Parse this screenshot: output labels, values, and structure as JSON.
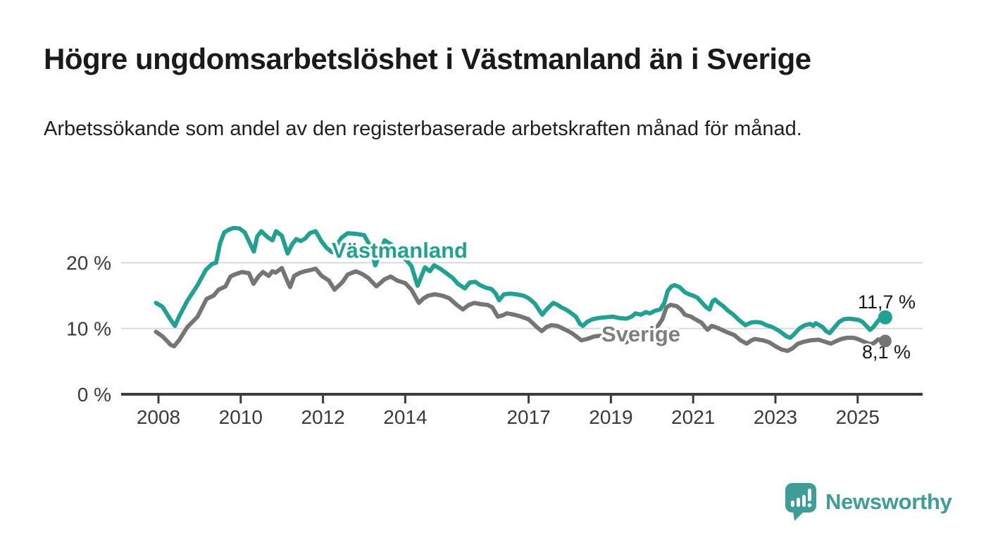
{
  "page": {
    "title": "Högre ungdomsarbetslöshet i Västmanland än i Sverige",
    "subtitle": "Arbetssökande som andel av den registerbaserade arbetskraften månad för månad."
  },
  "chart": {
    "y_axis": {
      "tick_labels": [
        "20 %",
        "10 %",
        "0 %"
      ],
      "tick_values": [
        20,
        10,
        0
      ]
    },
    "x_axis": {
      "tick_years": [
        2008,
        2010,
        2012,
        2014,
        2017,
        2019,
        2021,
        2023,
        2025
      ]
    },
    "series_labels": {
      "vastmanland": "Västmanland",
      "sverige": "Sverige"
    },
    "end_labels": {
      "vastmanland": "11,7 %",
      "sverige": "8,1 %"
    },
    "colors": {
      "vastmanland": "#20A191",
      "sverige": "#757575",
      "grid": "#d9d9d9",
      "axis": "#3c3c3c",
      "tick_text": "#3a3a3a",
      "end_label_text": "#1a1a1a"
    }
  },
  "chart_data": {
    "type": "line",
    "title": "Högre ungdomsarbetslöshet i Västmanland än i Sverige",
    "subtitle": "Arbetssökande som andel av den registerbaserade arbetskraften månad för månad.",
    "unit": "%",
    "x_range": [
      2007.9,
      2026.5
    ],
    "ylim": [
      0,
      27
    ],
    "y_ticks": [
      0,
      10,
      20
    ],
    "x_ticks": [
      2008,
      2010,
      2012,
      2014,
      2017,
      2019,
      2021,
      2023,
      2025
    ],
    "grid": "horizontal",
    "legend_position": "inline-labels",
    "series": [
      {
        "name": "Västmanland",
        "color": "#20A191",
        "end_label": "11,7 %",
        "end_value": 11.7,
        "points": [
          [
            2007.94,
            13.9
          ],
          [
            2008.1,
            13.3
          ],
          [
            2008.3,
            11.3
          ],
          [
            2008.4,
            10.4
          ],
          [
            2008.5,
            11.8
          ],
          [
            2008.7,
            14.2
          ],
          [
            2008.95,
            16.6
          ],
          [
            2009.15,
            18.9
          ],
          [
            2009.3,
            19.8
          ],
          [
            2009.4,
            20.0
          ],
          [
            2009.5,
            23.0
          ],
          [
            2009.6,
            24.6
          ],
          [
            2009.7,
            25.0
          ],
          [
            2009.83,
            25.3
          ],
          [
            2009.97,
            25.2
          ],
          [
            2010.1,
            24.6
          ],
          [
            2010.25,
            22.6
          ],
          [
            2010.32,
            21.7
          ],
          [
            2010.4,
            24.0
          ],
          [
            2010.5,
            24.8
          ],
          [
            2010.65,
            23.9
          ],
          [
            2010.77,
            23.4
          ],
          [
            2010.86,
            24.8
          ],
          [
            2011.0,
            24.1
          ],
          [
            2011.14,
            21.4
          ],
          [
            2011.25,
            22.8
          ],
          [
            2011.35,
            23.6
          ],
          [
            2011.46,
            23.3
          ],
          [
            2011.57,
            23.7
          ],
          [
            2011.68,
            24.5
          ],
          [
            2011.82,
            24.8
          ],
          [
            2011.97,
            23.2
          ],
          [
            2012.08,
            22.3
          ],
          [
            2012.22,
            21.6
          ],
          [
            2012.45,
            23.8
          ],
          [
            2012.6,
            24.5
          ],
          [
            2012.8,
            24.4
          ],
          [
            2013.0,
            24.2
          ],
          [
            2013.15,
            22.5
          ],
          [
            2013.27,
            19.6
          ],
          [
            2013.5,
            23.4
          ],
          [
            2013.7,
            22.6
          ],
          [
            2013.85,
            21.6
          ],
          [
            2014.0,
            20.6
          ],
          [
            2014.15,
            19.5
          ],
          [
            2014.3,
            16.5
          ],
          [
            2014.48,
            19.3
          ],
          [
            2014.6,
            18.7
          ],
          [
            2014.7,
            19.6
          ],
          [
            2014.85,
            19.1
          ],
          [
            2015.0,
            18.4
          ],
          [
            2015.15,
            17.7
          ],
          [
            2015.28,
            16.8
          ],
          [
            2015.45,
            16.1
          ],
          [
            2015.57,
            17.0
          ],
          [
            2015.7,
            17.1
          ],
          [
            2015.82,
            16.6
          ],
          [
            2015.96,
            16.2
          ],
          [
            2016.1,
            16.0
          ],
          [
            2016.2,
            15.3
          ],
          [
            2016.28,
            14.3
          ],
          [
            2016.4,
            15.2
          ],
          [
            2016.55,
            15.3
          ],
          [
            2016.7,
            15.2
          ],
          [
            2016.87,
            15.0
          ],
          [
            2017.0,
            14.6
          ],
          [
            2017.15,
            13.8
          ],
          [
            2017.33,
            12.1
          ],
          [
            2017.45,
            13.0
          ],
          [
            2017.6,
            13.9
          ],
          [
            2017.7,
            13.6
          ],
          [
            2017.8,
            13.2
          ],
          [
            2017.9,
            12.9
          ],
          [
            2018.0,
            12.5
          ],
          [
            2018.15,
            11.8
          ],
          [
            2018.25,
            10.7
          ],
          [
            2018.32,
            10.4
          ],
          [
            2018.42,
            11.0
          ],
          [
            2018.55,
            11.4
          ],
          [
            2018.7,
            11.6
          ],
          [
            2018.87,
            11.7
          ],
          [
            2019.05,
            11.8
          ],
          [
            2019.2,
            11.6
          ],
          [
            2019.38,
            11.5
          ],
          [
            2019.5,
            11.8
          ],
          [
            2019.6,
            12.3
          ],
          [
            2019.73,
            12.1
          ],
          [
            2019.85,
            12.5
          ],
          [
            2019.95,
            12.3
          ],
          [
            2020.07,
            12.7
          ],
          [
            2020.2,
            12.9
          ],
          [
            2020.3,
            13.9
          ],
          [
            2020.38,
            15.7
          ],
          [
            2020.47,
            16.4
          ],
          [
            2020.55,
            16.6
          ],
          [
            2020.67,
            16.3
          ],
          [
            2020.8,
            15.5
          ],
          [
            2020.9,
            15.2
          ],
          [
            2021.0,
            15.0
          ],
          [
            2021.1,
            14.7
          ],
          [
            2021.22,
            13.9
          ],
          [
            2021.32,
            13.2
          ],
          [
            2021.4,
            12.9
          ],
          [
            2021.47,
            14.1
          ],
          [
            2021.53,
            14.4
          ],
          [
            2021.62,
            13.9
          ],
          [
            2021.73,
            13.4
          ],
          [
            2021.85,
            12.7
          ],
          [
            2021.96,
            12.2
          ],
          [
            2022.13,
            11.2
          ],
          [
            2022.27,
            10.5
          ],
          [
            2022.4,
            10.9
          ],
          [
            2022.52,
            11.0
          ],
          [
            2022.65,
            10.9
          ],
          [
            2022.78,
            10.5
          ],
          [
            2022.93,
            10.2
          ],
          [
            2023.1,
            9.6
          ],
          [
            2023.27,
            8.8
          ],
          [
            2023.36,
            8.6
          ],
          [
            2023.45,
            9.1
          ],
          [
            2023.58,
            10.0
          ],
          [
            2023.72,
            10.5
          ],
          [
            2023.85,
            10.7
          ],
          [
            2023.92,
            10.4
          ],
          [
            2023.98,
            10.8
          ],
          [
            2024.07,
            10.5
          ],
          [
            2024.15,
            10.2
          ],
          [
            2024.23,
            9.6
          ],
          [
            2024.32,
            9.3
          ],
          [
            2024.44,
            10.2
          ],
          [
            2024.55,
            11.0
          ],
          [
            2024.66,
            11.4
          ],
          [
            2024.8,
            11.5
          ],
          [
            2024.92,
            11.4
          ],
          [
            2025.03,
            11.3
          ],
          [
            2025.12,
            11.0
          ],
          [
            2025.21,
            10.4
          ],
          [
            2025.3,
            9.8
          ],
          [
            2025.38,
            10.2
          ],
          [
            2025.5,
            11.2
          ],
          [
            2025.6,
            11.8
          ],
          [
            2025.67,
            11.7
          ]
        ]
      },
      {
        "name": "Sverige",
        "color": "#757575",
        "end_label": "8,1 %",
        "end_value": 8.1,
        "points": [
          [
            2007.94,
            9.5
          ],
          [
            2008.1,
            8.8
          ],
          [
            2008.3,
            7.5
          ],
          [
            2008.38,
            7.3
          ],
          [
            2008.5,
            8.2
          ],
          [
            2008.7,
            10.2
          ],
          [
            2008.95,
            11.8
          ],
          [
            2009.17,
            14.5
          ],
          [
            2009.34,
            15.0
          ],
          [
            2009.46,
            15.9
          ],
          [
            2009.63,
            16.4
          ],
          [
            2009.75,
            17.9
          ],
          [
            2009.85,
            18.2
          ],
          [
            2010.03,
            18.6
          ],
          [
            2010.2,
            18.4
          ],
          [
            2010.31,
            16.8
          ],
          [
            2010.43,
            17.9
          ],
          [
            2010.54,
            18.6
          ],
          [
            2010.68,
            18.0
          ],
          [
            2010.77,
            18.7
          ],
          [
            2010.85,
            18.5
          ],
          [
            2011.0,
            19.2
          ],
          [
            2011.12,
            17.4
          ],
          [
            2011.2,
            16.3
          ],
          [
            2011.3,
            18.0
          ],
          [
            2011.45,
            18.5
          ],
          [
            2011.56,
            18.7
          ],
          [
            2011.7,
            18.9
          ],
          [
            2011.82,
            19.1
          ],
          [
            2011.97,
            18.0
          ],
          [
            2012.14,
            17.3
          ],
          [
            2012.28,
            15.9
          ],
          [
            2012.48,
            17.1
          ],
          [
            2012.6,
            18.2
          ],
          [
            2012.8,
            18.7
          ],
          [
            2012.95,
            18.3
          ],
          [
            2013.1,
            17.7
          ],
          [
            2013.3,
            16.4
          ],
          [
            2013.5,
            17.5
          ],
          [
            2013.65,
            17.9
          ],
          [
            2013.8,
            17.3
          ],
          [
            2014.0,
            16.9
          ],
          [
            2014.15,
            15.9
          ],
          [
            2014.33,
            13.9
          ],
          [
            2014.45,
            14.6
          ],
          [
            2014.56,
            15.0
          ],
          [
            2014.72,
            15.2
          ],
          [
            2014.9,
            15.0
          ],
          [
            2015.07,
            14.6
          ],
          [
            2015.25,
            13.6
          ],
          [
            2015.4,
            12.9
          ],
          [
            2015.55,
            13.6
          ],
          [
            2015.68,
            13.9
          ],
          [
            2015.83,
            13.7
          ],
          [
            2016.0,
            13.6
          ],
          [
            2016.12,
            13.2
          ],
          [
            2016.25,
            11.8
          ],
          [
            2016.37,
            12.0
          ],
          [
            2016.47,
            12.3
          ],
          [
            2016.65,
            12.1
          ],
          [
            2016.82,
            11.8
          ],
          [
            2017.0,
            11.4
          ],
          [
            2017.2,
            10.2
          ],
          [
            2017.32,
            9.6
          ],
          [
            2017.43,
            10.2
          ],
          [
            2017.55,
            10.5
          ],
          [
            2017.7,
            10.4
          ],
          [
            2017.9,
            9.8
          ],
          [
            2018.05,
            9.3
          ],
          [
            2018.2,
            8.6
          ],
          [
            2018.28,
            8.2
          ],
          [
            2018.42,
            8.4
          ],
          [
            2018.6,
            8.8
          ],
          [
            2018.75,
            8.9
          ],
          [
            2018.95,
            9.2
          ],
          [
            2019.1,
            9.0
          ],
          [
            2019.25,
            8.4
          ],
          [
            2019.37,
            7.9
          ],
          [
            2019.5,
            8.5
          ],
          [
            2019.6,
            8.9
          ],
          [
            2019.8,
            9.1
          ],
          [
            2020.0,
            9.5
          ],
          [
            2020.1,
            10.0
          ],
          [
            2020.25,
            11.4
          ],
          [
            2020.35,
            13.2
          ],
          [
            2020.45,
            13.6
          ],
          [
            2020.6,
            13.4
          ],
          [
            2020.7,
            12.9
          ],
          [
            2020.8,
            12.1
          ],
          [
            2020.95,
            11.8
          ],
          [
            2021.0,
            11.6
          ],
          [
            2021.2,
            10.9
          ],
          [
            2021.35,
            9.8
          ],
          [
            2021.45,
            10.4
          ],
          [
            2021.55,
            10.2
          ],
          [
            2021.7,
            9.8
          ],
          [
            2021.8,
            9.5
          ],
          [
            2022.0,
            9.0
          ],
          [
            2022.15,
            8.2
          ],
          [
            2022.3,
            7.7
          ],
          [
            2022.42,
            8.2
          ],
          [
            2022.5,
            8.4
          ],
          [
            2022.7,
            8.2
          ],
          [
            2022.85,
            7.9
          ],
          [
            2023.0,
            7.3
          ],
          [
            2023.15,
            6.8
          ],
          [
            2023.3,
            6.6
          ],
          [
            2023.42,
            7.0
          ],
          [
            2023.55,
            7.7
          ],
          [
            2023.7,
            8.0
          ],
          [
            2023.85,
            8.2
          ],
          [
            2024.05,
            8.3
          ],
          [
            2024.2,
            8.0
          ],
          [
            2024.35,
            7.7
          ],
          [
            2024.45,
            8.0
          ],
          [
            2024.6,
            8.4
          ],
          [
            2024.75,
            8.6
          ],
          [
            2024.9,
            8.6
          ],
          [
            2025.0,
            8.4
          ],
          [
            2025.15,
            8.0
          ],
          [
            2025.3,
            7.6
          ],
          [
            2025.4,
            7.8
          ],
          [
            2025.5,
            8.35
          ],
          [
            2025.67,
            8.1
          ]
        ]
      }
    ]
  },
  "branding": {
    "logo_text": "Newsworthy",
    "logo_color": "#3F9D97",
    "logo_icon": "bar-chart-speech-bubble-icon"
  }
}
